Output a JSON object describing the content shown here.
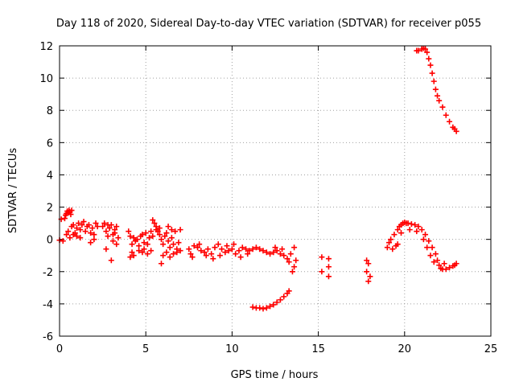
{
  "chart_data": {
    "type": "scatter",
    "title": "Day 118 of 2020, Sidereal Day-to-day VTEC variation (SDTVAR) for receiver p055",
    "xlabel": "GPS time / hours",
    "ylabel": "SDTVAR / TECUs",
    "xlim": [
      0,
      25
    ],
    "ylim": [
      -6,
      12
    ],
    "xticks": [
      0,
      5,
      10,
      15,
      20,
      25
    ],
    "yticks": [
      -6,
      -4,
      -2,
      0,
      2,
      4,
      6,
      8,
      10,
      12
    ],
    "xtick_labels": [
      "0",
      "5",
      "10",
      "15",
      "20",
      "25"
    ],
    "ytick_labels": [
      "-6",
      "-4",
      "-2",
      "0",
      "2",
      "4",
      "6",
      "8",
      "10",
      "12"
    ],
    "grid": true,
    "marker": "+",
    "color": "#ff0000",
    "series": [
      {
        "name": "SDTVAR",
        "points": [
          [
            0.0,
            -0.05
          ],
          [
            0.1,
            1.25
          ],
          [
            0.2,
            -0.1
          ],
          [
            0.3,
            1.3
          ],
          [
            0.35,
            1.5
          ],
          [
            0.4,
            1.6
          ],
          [
            0.45,
            1.75
          ],
          [
            0.5,
            1.65
          ],
          [
            0.55,
            1.8
          ],
          [
            0.6,
            1.7
          ],
          [
            0.65,
            1.55
          ],
          [
            0.7,
            1.8
          ],
          [
            0.4,
            0.3
          ],
          [
            0.5,
            0.5
          ],
          [
            0.6,
            0.1
          ],
          [
            0.7,
            0.8
          ],
          [
            0.8,
            0.9
          ],
          [
            0.9,
            0.4
          ],
          [
            1.0,
            0.7
          ],
          [
            1.1,
            1.0
          ],
          [
            1.2,
            0.6
          ],
          [
            1.3,
            0.9
          ],
          [
            1.4,
            1.1
          ],
          [
            1.5,
            0.5
          ],
          [
            1.6,
            0.8
          ],
          [
            1.7,
            0.9
          ],
          [
            1.8,
            0.4
          ],
          [
            1.9,
            0.7
          ],
          [
            2.0,
            0.3
          ],
          [
            2.1,
            1.0
          ],
          [
            2.2,
            0.8
          ],
          [
            1.0,
            0.2
          ],
          [
            0.8,
            0.3
          ],
          [
            1.2,
            0.1
          ],
          [
            1.8,
            -0.2
          ],
          [
            2.0,
            0.0
          ],
          [
            2.5,
            0.8
          ],
          [
            2.6,
            1.0
          ],
          [
            2.7,
            0.5
          ],
          [
            2.8,
            0.2
          ],
          [
            2.9,
            0.7
          ],
          [
            3.0,
            0.9
          ],
          [
            3.1,
            0.3
          ],
          [
            3.2,
            0.6
          ],
          [
            3.3,
            0.8
          ],
          [
            3.4,
            0.1
          ],
          [
            2.7,
            -0.6
          ],
          [
            2.8,
            0.9
          ],
          [
            3.0,
            -1.3
          ],
          [
            3.3,
            -0.3
          ],
          [
            3.2,
            0.4
          ],
          [
            3.1,
            -0.1
          ],
          [
            4.0,
            0.5
          ],
          [
            4.1,
            0.2
          ],
          [
            4.2,
            -0.3
          ],
          [
            4.3,
            0.1
          ],
          [
            4.4,
            -0.1
          ],
          [
            4.5,
            0.0
          ],
          [
            4.6,
            -0.4
          ],
          [
            4.7,
            0.2
          ],
          [
            4.8,
            0.3
          ],
          [
            4.9,
            -0.2
          ],
          [
            5.0,
            0.4
          ],
          [
            5.1,
            -0.3
          ],
          [
            5.2,
            0.1
          ],
          [
            5.3,
            0.5
          ],
          [
            5.4,
            0.2
          ],
          [
            4.1,
            -1.1
          ],
          [
            4.3,
            -1.0
          ],
          [
            4.6,
            -0.7
          ],
          [
            4.9,
            -0.6
          ],
          [
            5.1,
            -0.9
          ],
          [
            5.3,
            -0.7
          ],
          [
            4.2,
            -0.8
          ],
          [
            4.8,
            -0.8
          ],
          [
            5.4,
            1.2
          ],
          [
            5.5,
            1.0
          ],
          [
            5.6,
            0.6
          ],
          [
            5.7,
            0.5
          ],
          [
            5.8,
            0.3
          ],
          [
            5.9,
            0.0
          ],
          [
            6.0,
            -0.3
          ],
          [
            6.1,
            0.2
          ],
          [
            6.2,
            0.4
          ],
          [
            6.3,
            -0.1
          ],
          [
            6.4,
            -0.5
          ],
          [
            6.5,
            0.1
          ],
          [
            6.6,
            -0.3
          ],
          [
            6.7,
            0.5
          ],
          [
            6.8,
            -0.6
          ],
          [
            6.9,
            -0.2
          ],
          [
            7.0,
            -0.7
          ],
          [
            5.9,
            -1.5
          ],
          [
            6.0,
            -1.0
          ],
          [
            6.2,
            -0.8
          ],
          [
            6.4,
            -1.1
          ],
          [
            6.6,
            -0.9
          ],
          [
            6.8,
            -0.8
          ],
          [
            7.0,
            0.6
          ],
          [
            5.6,
            0.8
          ],
          [
            5.8,
            0.7
          ],
          [
            6.3,
            0.8
          ],
          [
            6.5,
            0.6
          ],
          [
            7.5,
            -0.6
          ],
          [
            7.6,
            -0.9
          ],
          [
            7.7,
            -1.1
          ],
          [
            7.8,
            -0.4
          ],
          [
            8.0,
            -0.5
          ],
          [
            8.2,
            -0.7
          ],
          [
            8.4,
            -0.8
          ],
          [
            8.6,
            -0.6
          ],
          [
            8.8,
            -0.9
          ],
          [
            9.0,
            -0.5
          ],
          [
            9.2,
            -0.3
          ],
          [
            9.4,
            -0.6
          ],
          [
            9.6,
            -0.8
          ],
          [
            9.8,
            -0.7
          ],
          [
            10.0,
            -0.6
          ],
          [
            10.2,
            -0.9
          ],
          [
            10.4,
            -0.7
          ],
          [
            10.6,
            -0.5
          ],
          [
            10.8,
            -0.6
          ],
          [
            11.0,
            -0.7
          ],
          [
            11.2,
            -0.6
          ],
          [
            11.4,
            -0.5
          ],
          [
            11.6,
            -0.6
          ],
          [
            11.8,
            -0.7
          ],
          [
            12.0,
            -0.8
          ],
          [
            12.2,
            -0.9
          ],
          [
            12.4,
            -0.8
          ],
          [
            12.6,
            -0.7
          ],
          [
            12.8,
            -0.9
          ],
          [
            13.0,
            -1.0
          ],
          [
            13.2,
            -1.2
          ],
          [
            13.4,
            -0.9
          ],
          [
            13.6,
            -0.5
          ],
          [
            8.1,
            -0.3
          ],
          [
            8.5,
            -1.0
          ],
          [
            8.9,
            -1.2
          ],
          [
            9.3,
            -1.0
          ],
          [
            9.7,
            -0.4
          ],
          [
            10.1,
            -0.3
          ],
          [
            10.5,
            -1.1
          ],
          [
            10.9,
            -0.9
          ],
          [
            12.5,
            -0.5
          ],
          [
            12.9,
            -0.6
          ],
          [
            13.3,
            -1.4
          ],
          [
            13.5,
            -2.0
          ],
          [
            13.6,
            -1.7
          ],
          [
            13.7,
            -1.3
          ],
          [
            11.2,
            -4.2
          ],
          [
            11.4,
            -4.25
          ],
          [
            11.6,
            -4.25
          ],
          [
            11.8,
            -4.3
          ],
          [
            12.0,
            -4.25
          ],
          [
            12.2,
            -4.15
          ],
          [
            12.4,
            -4.05
          ],
          [
            12.6,
            -3.9
          ],
          [
            12.8,
            -3.75
          ],
          [
            13.0,
            -3.55
          ],
          [
            13.2,
            -3.35
          ],
          [
            13.3,
            -3.2
          ],
          [
            15.2,
            -1.1
          ],
          [
            15.2,
            -2.0
          ],
          [
            15.6,
            -1.2
          ],
          [
            15.6,
            -1.7
          ],
          [
            15.6,
            -2.3
          ],
          [
            17.8,
            -1.3
          ],
          [
            17.8,
            -2.0
          ],
          [
            17.9,
            -2.6
          ],
          [
            17.9,
            -1.5
          ],
          [
            18.0,
            -2.3
          ],
          [
            19.0,
            -0.5
          ],
          [
            19.1,
            -0.2
          ],
          [
            19.2,
            0.0
          ],
          [
            19.3,
            -0.6
          ],
          [
            19.4,
            0.3
          ],
          [
            19.5,
            -0.4
          ],
          [
            19.6,
            0.6
          ],
          [
            19.7,
            0.8
          ],
          [
            19.8,
            0.9
          ],
          [
            19.9,
            1.0
          ],
          [
            20.0,
            1.05
          ],
          [
            20.1,
            1.0
          ],
          [
            20.2,
            1.0
          ],
          [
            20.4,
            0.95
          ],
          [
            20.6,
            0.9
          ],
          [
            20.8,
            0.8
          ],
          [
            21.0,
            0.6
          ],
          [
            21.2,
            0.3
          ],
          [
            21.4,
            -0.1
          ],
          [
            21.6,
            -0.5
          ],
          [
            21.8,
            -0.9
          ],
          [
            21.9,
            -1.3
          ],
          [
            22.0,
            -1.6
          ],
          [
            22.1,
            -1.8
          ],
          [
            22.2,
            -1.85
          ],
          [
            22.4,
            -1.85
          ],
          [
            22.6,
            -1.75
          ],
          [
            22.8,
            -1.65
          ],
          [
            22.9,
            -1.6
          ],
          [
            23.0,
            -1.5
          ],
          [
            19.6,
            -0.3
          ],
          [
            19.8,
            0.4
          ],
          [
            20.3,
            0.6
          ],
          [
            20.7,
            0.5
          ],
          [
            21.1,
            0.0
          ],
          [
            21.3,
            -0.5
          ],
          [
            21.5,
            -1.0
          ],
          [
            21.7,
            -1.4
          ],
          [
            22.3,
            -1.5
          ],
          [
            20.7,
            11.7
          ],
          [
            20.8,
            11.7
          ],
          [
            21.0,
            11.8
          ],
          [
            21.1,
            11.85
          ],
          [
            21.2,
            11.8
          ],
          [
            21.3,
            11.6
          ],
          [
            21.4,
            11.2
          ],
          [
            21.5,
            10.8
          ],
          [
            21.6,
            10.3
          ],
          [
            21.7,
            9.8
          ],
          [
            21.8,
            9.3
          ],
          [
            21.9,
            8.9
          ],
          [
            22.0,
            8.6
          ],
          [
            22.2,
            8.2
          ],
          [
            22.4,
            7.7
          ],
          [
            22.6,
            7.3
          ],
          [
            22.8,
            6.95
          ],
          [
            22.9,
            6.85
          ],
          [
            23.0,
            6.7
          ]
        ]
      }
    ]
  }
}
